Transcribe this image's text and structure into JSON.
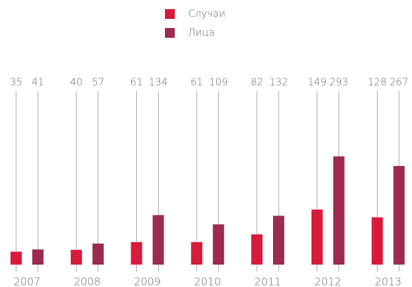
{
  "chart_data": {
    "type": "bar",
    "categories": [
      "2007",
      "2008",
      "2009",
      "2010",
      "2011",
      "2012",
      "2013"
    ],
    "series": [
      {
        "name": "Случаи",
        "color": "#d81a3c",
        "values": [
          35,
          40,
          61,
          61,
          82,
          149,
          128
        ]
      },
      {
        "name": "Лица",
        "color": "#9b2b50",
        "values": [
          41,
          57,
          134,
          109,
          132,
          293,
          267
        ]
      }
    ],
    "ylim": [
      0,
      470
    ]
  }
}
